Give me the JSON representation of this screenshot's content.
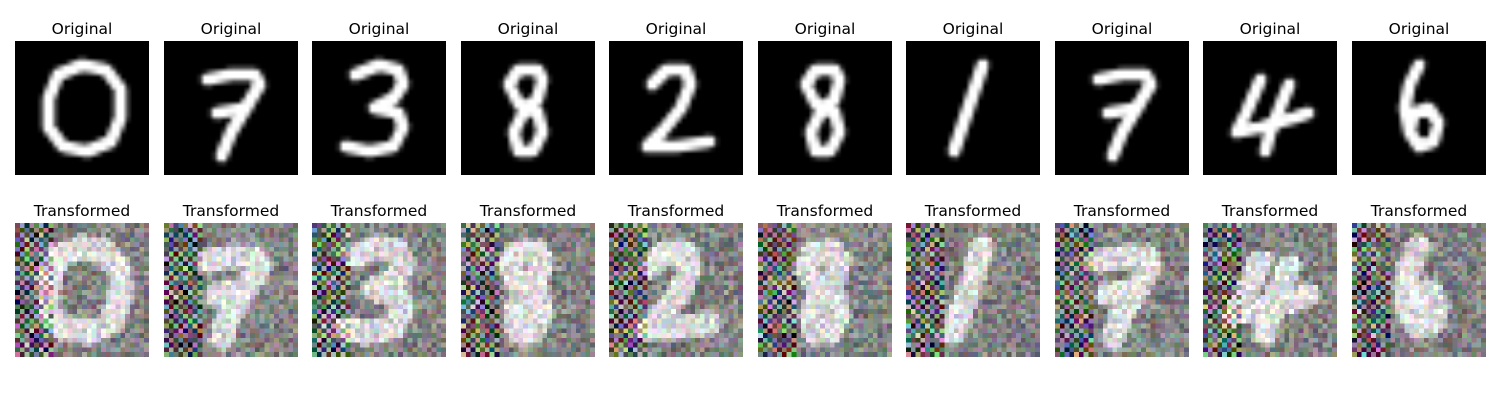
{
  "figure": {
    "rows": [
      {
        "key": "original",
        "panels": [
          {
            "title": "Original",
            "digit": "0"
          },
          {
            "title": "Original",
            "digit": "7"
          },
          {
            "title": "Original",
            "digit": "3"
          },
          {
            "title": "Original",
            "digit": "8"
          },
          {
            "title": "Original",
            "digit": "2"
          },
          {
            "title": "Original",
            "digit": "8"
          },
          {
            "title": "Original",
            "digit": "1"
          },
          {
            "title": "Original",
            "digit": "7"
          },
          {
            "title": "Original",
            "digit": "4"
          },
          {
            "title": "Original",
            "digit": "6"
          }
        ]
      },
      {
        "key": "transformed",
        "panels": [
          {
            "title": "Transformed",
            "digit": "0"
          },
          {
            "title": "Transformed",
            "digit": "7"
          },
          {
            "title": "Transformed",
            "digit": "3"
          },
          {
            "title": "Transformed",
            "digit": "8"
          },
          {
            "title": "Transformed",
            "digit": "2"
          },
          {
            "title": "Transformed",
            "digit": "8"
          },
          {
            "title": "Transformed",
            "digit": "1"
          },
          {
            "title": "Transformed",
            "digit": "7"
          },
          {
            "title": "Transformed",
            "digit": "4"
          },
          {
            "title": "Transformed",
            "digit": "6"
          }
        ]
      }
    ],
    "colors": {
      "original_background": "#000000",
      "original_stroke": "#ffffff",
      "transformed_base": "#8c8c86"
    }
  }
}
